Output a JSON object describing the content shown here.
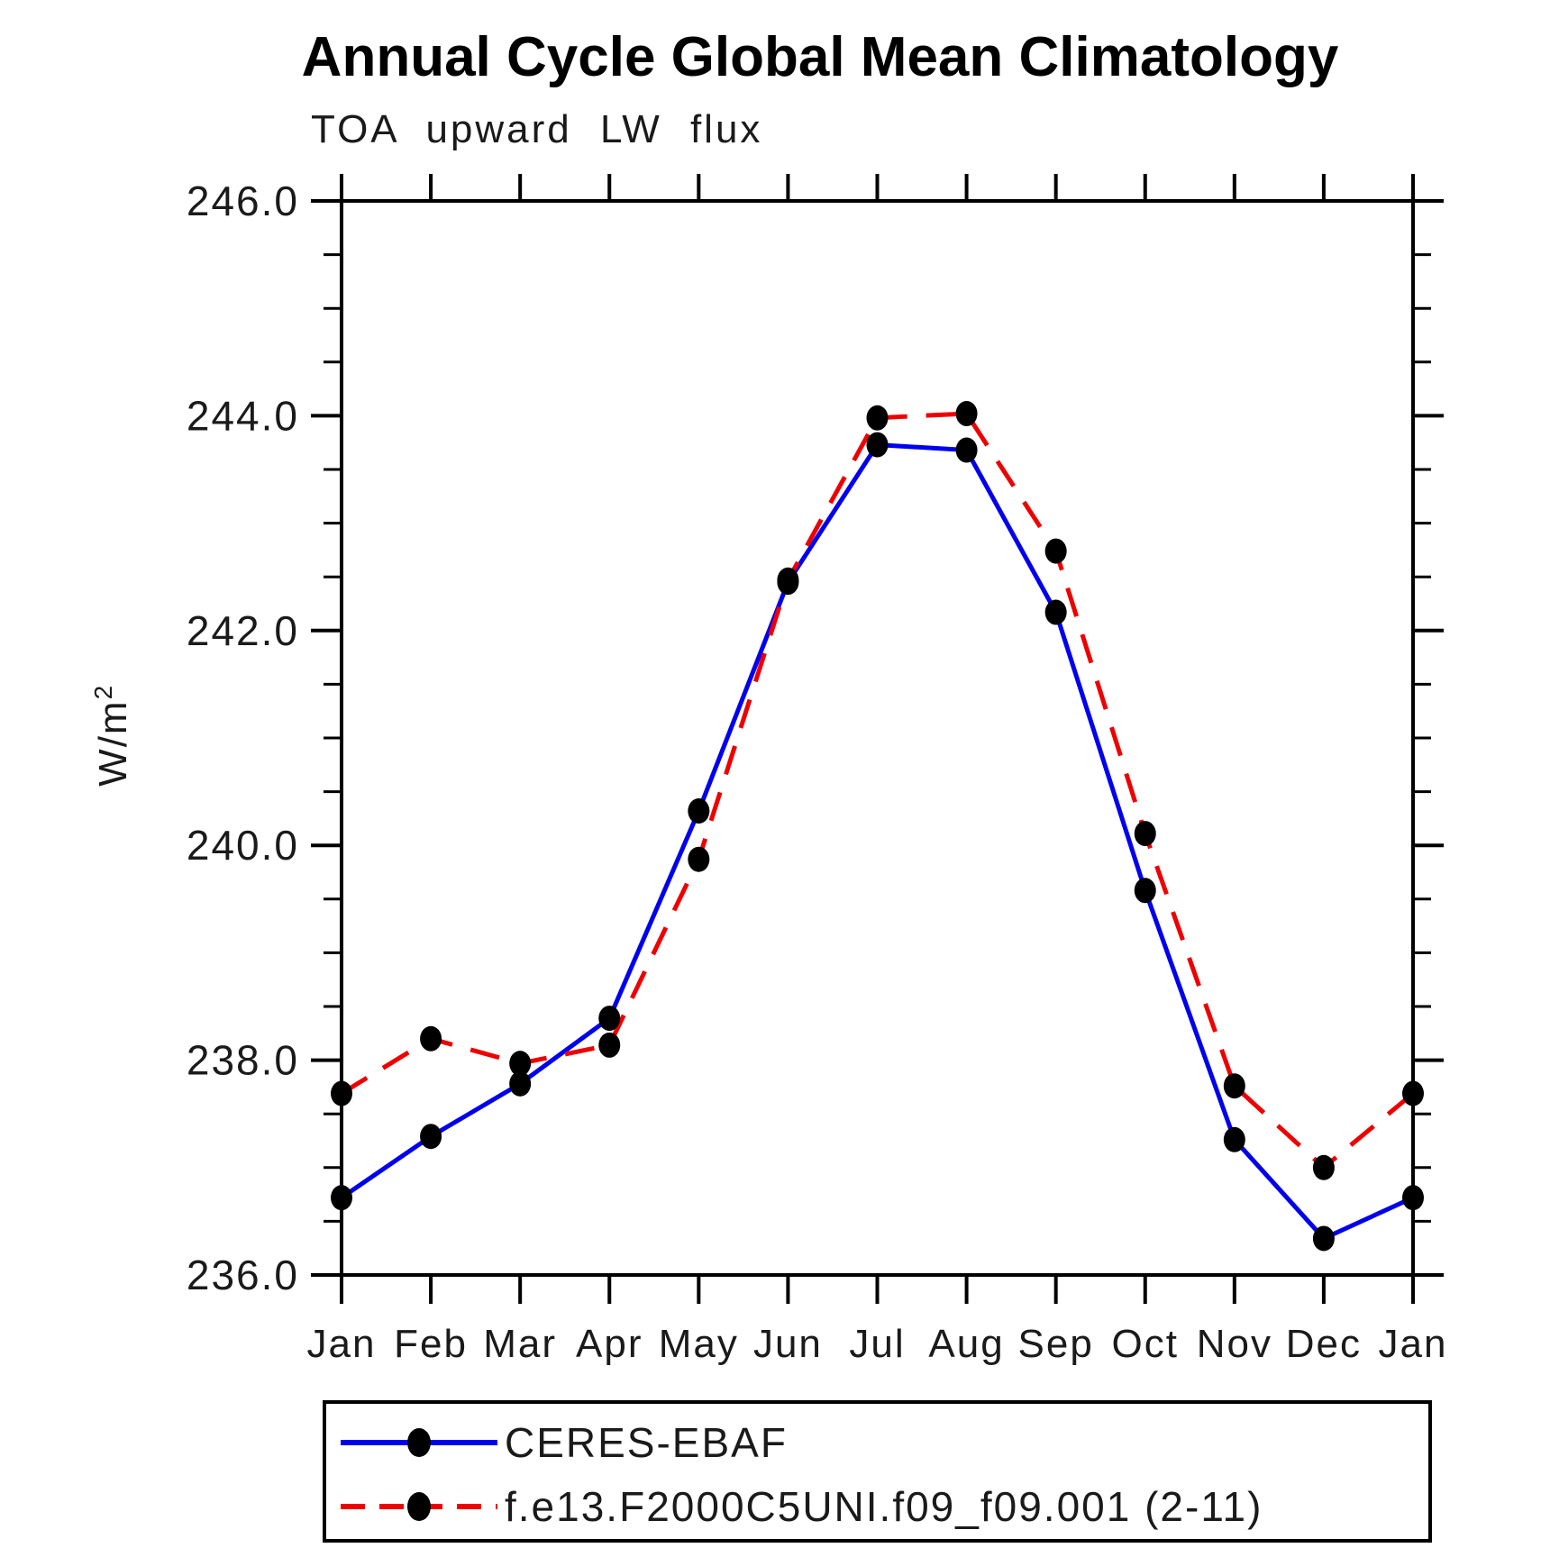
{
  "header": {
    "title": "Annual Cycle Global Mean Climatology",
    "subtitle": "TOA upward LW flux"
  },
  "y_axis": {
    "label": "W/m",
    "exponent": "2"
  },
  "chart_data": {
    "type": "line",
    "x": [
      "Jan",
      "Feb",
      "Mar",
      "Apr",
      "May",
      "Jun",
      "Jul",
      "Aug",
      "Sep",
      "Oct",
      "Nov",
      "Dec",
      "Jan"
    ],
    "series": [
      {
        "name": "CERES-EBAF",
        "color": "#0000ee",
        "line_style": "solid",
        "marker": "black-filled-dot",
        "values": [
          236.72,
          237.29,
          237.78,
          238.39,
          240.32,
          242.45,
          243.73,
          243.68,
          242.17,
          239.58,
          237.26,
          236.34,
          236.72
        ]
      },
      {
        "name": "f.e13.F2000C5UNI.f09_f09.001 (2-11)",
        "color": "#ee0000",
        "line_style": "dashed",
        "marker": "black-filled-dot",
        "values": [
          237.69,
          238.2,
          237.97,
          238.14,
          239.87,
          242.47,
          243.98,
          244.02,
          242.74,
          240.11,
          237.76,
          237.0,
          237.69
        ]
      }
    ],
    "title": "Annual Cycle Global Mean Climatology",
    "subtitle": "TOA upward LW flux",
    "xlabel": "",
    "ylabel": "W/m2",
    "ylim": [
      236.0,
      246.0
    ],
    "y_major_step": 2.0,
    "y_minor_step": 0.5,
    "y_tick_labels": [
      "236.0",
      "238.0",
      "240.0",
      "242.0",
      "244.0",
      "246.0"
    ],
    "grid": false,
    "legend_position": "bottom-left-box",
    "marker_color": "#000000"
  }
}
